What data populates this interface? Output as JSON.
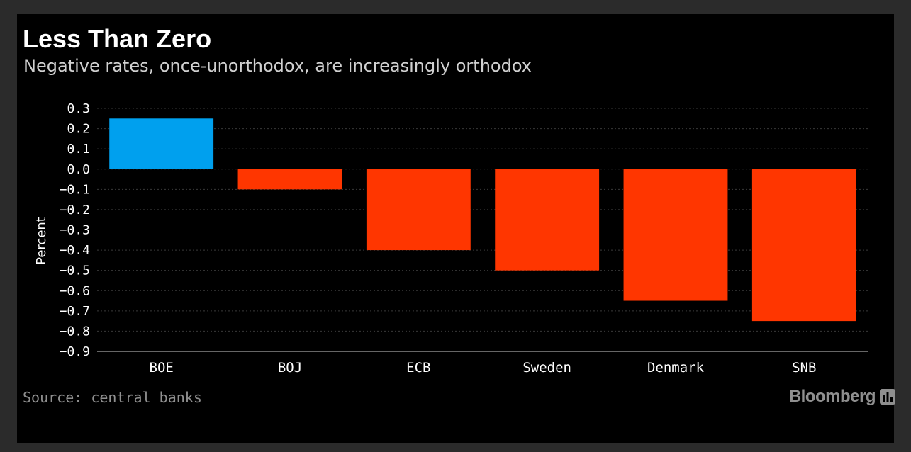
{
  "chart_data": {
    "type": "bar",
    "title": "Less Than Zero",
    "subtitle": "Negative rates, once-unorthodox, are increasingly orthodox",
    "xlabel": "",
    "ylabel": "Percent",
    "categories": [
      "BOE",
      "BOJ",
      "ECB",
      "Sweden",
      "Denmark",
      "SNB"
    ],
    "values": [
      0.25,
      -0.1,
      -0.4,
      -0.5,
      -0.65,
      -0.75
    ],
    "ylim": [
      -0.9,
      0.3
    ],
    "yticks": [
      0.3,
      0.2,
      0.1,
      0.0,
      -0.1,
      -0.2,
      -0.3,
      -0.4,
      -0.5,
      -0.6,
      -0.7,
      -0.8,
      -0.9
    ],
    "ytick_labels": [
      "0.3",
      "0.2",
      "0.1",
      "0.0",
      "−0.1",
      "−0.2",
      "−0.3",
      "−0.4",
      "−0.5",
      "−0.6",
      "−0.7",
      "−0.8",
      "−0.9"
    ],
    "grid": true,
    "colors": {
      "positive": "#00a0ee",
      "negative": "#ff3600",
      "grid": "#3a3a3a",
      "axis": "#cccccc"
    }
  },
  "source": "Source: central banks",
  "brand": {
    "name": "Bloomberg",
    "icon": "bloomberg-chart-icon"
  }
}
